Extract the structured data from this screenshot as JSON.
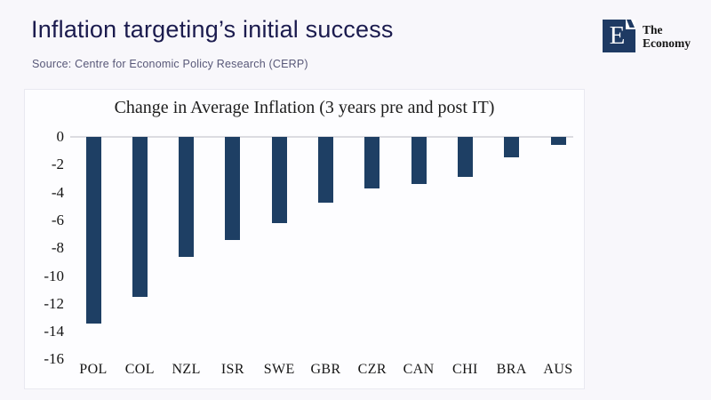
{
  "slide": {
    "title": "Inflation targeting’s initial success",
    "source": "Source: Centre for Economic Policy Research (CERP)"
  },
  "logo": {
    "mark": "E",
    "name_line1": "The",
    "name_line2": "Economy",
    "square_color": "#1e3a63"
  },
  "chart_data": {
    "type": "bar",
    "title": "Change in Average Inflation (3 years pre and post IT)",
    "categories": [
      "POL",
      "COL",
      "NZL",
      "ISR",
      "SWE",
      "GBR",
      "CZR",
      "CAN",
      "CHI",
      "BRA",
      "AUS"
    ],
    "values": [
      -13.4,
      -11.5,
      -8.6,
      -7.4,
      -6.2,
      -4.7,
      -3.7,
      -3.4,
      -2.9,
      -1.5,
      -0.6
    ],
    "xlabel": "",
    "ylabel": "",
    "ylim": [
      -16,
      0
    ],
    "yticks": [
      0,
      -2,
      -4,
      -6,
      -8,
      -10,
      -12,
      -14,
      -16
    ],
    "bar_color": "#1e3f64",
    "grid": "zero-line-only",
    "legend": "none"
  },
  "colors": {
    "slide_background": "#f8f7fb",
    "panel_background": "#fdfdff",
    "title_navy": "#1b1b4e",
    "source_gray": "#585878",
    "bar_navy": "#1e3f64",
    "zero_line": "#dcdce1"
  }
}
